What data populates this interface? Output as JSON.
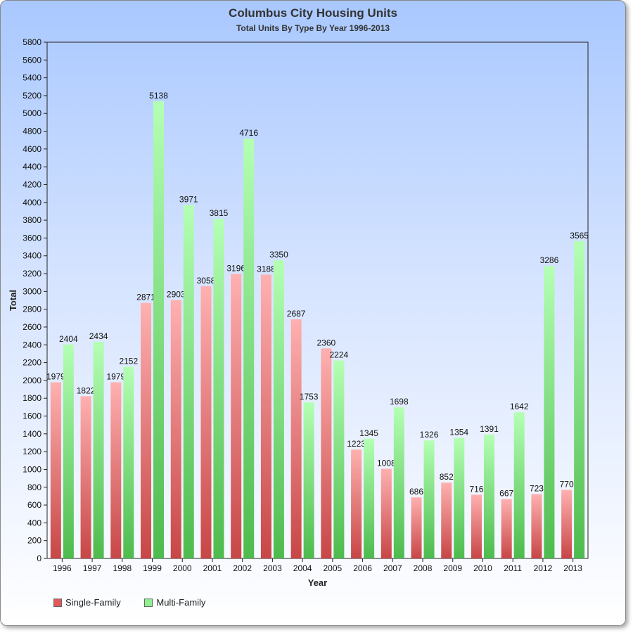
{
  "chart_data": {
    "type": "bar",
    "title": "Columbus City Housing Units",
    "subtitle": "Total Units By Type By Year 1996-2013",
    "xlabel": "Year",
    "ylabel": "Total",
    "ylim": [
      0,
      5800
    ],
    "ytick_step": 200,
    "grid": false,
    "legend_position": "bottom-left",
    "categories": [
      "1996",
      "1997",
      "1998",
      "1999",
      "2000",
      "2001",
      "2002",
      "2003",
      "2004",
      "2005",
      "2006",
      "2007",
      "2008",
      "2009",
      "2010",
      "2011",
      "2012",
      "2013"
    ],
    "series": [
      {
        "name": "Single-Family",
        "color": "#e05a5a",
        "values": [
          1979,
          1822,
          1979,
          2871,
          2903,
          3058,
          3196,
          3188,
          2687,
          2360,
          1223,
          1008,
          686,
          852,
          716,
          667,
          723,
          770
        ]
      },
      {
        "name": "Multi-Family",
        "color": "#5ccc5c",
        "values": [
          2404,
          2434,
          2152,
          5138,
          3971,
          3815,
          4716,
          3350,
          1753,
          2224,
          1345,
          1698,
          1326,
          1354,
          1391,
          1642,
          3286,
          3565
        ]
      }
    ]
  }
}
